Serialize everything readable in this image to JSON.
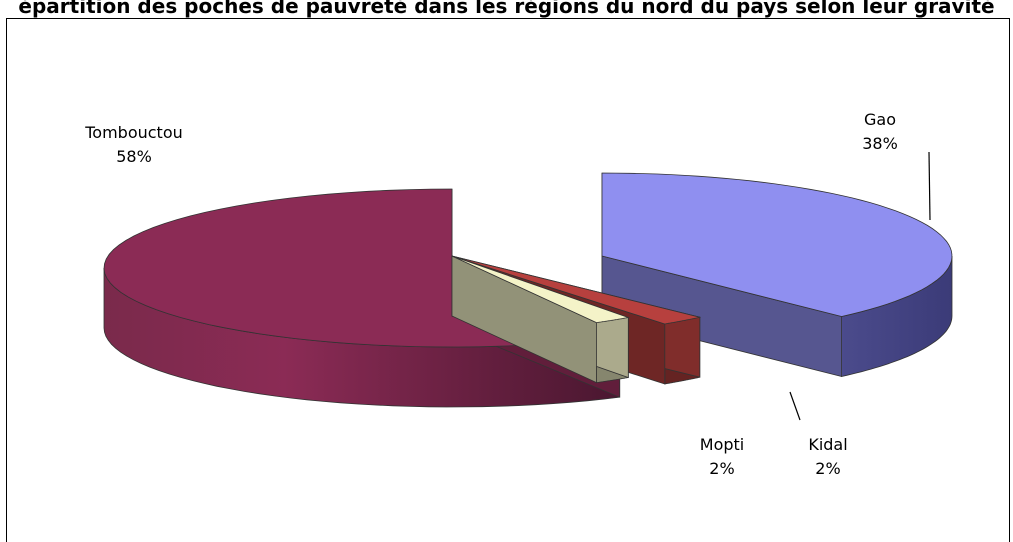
{
  "chart_data": {
    "type": "pie",
    "title": "épartition des poches de pauvreté dans les régions du nord du pays selon leur gravité",
    "slices": [
      {
        "name": "Tombouctou",
        "label": "58%",
        "value": 58,
        "color": "#8b2b55"
      },
      {
        "name": "Gao",
        "label": "38%",
        "value": 38,
        "color": "#8f8ff0"
      },
      {
        "name": "Kidal",
        "label": "2%",
        "value": 2,
        "color": "#b7403e"
      },
      {
        "name": "Mopti",
        "label": "2%",
        "value": 2,
        "color": "#f4f3c8"
      }
    ],
    "style": "3d-exploded",
    "legend": "none"
  }
}
